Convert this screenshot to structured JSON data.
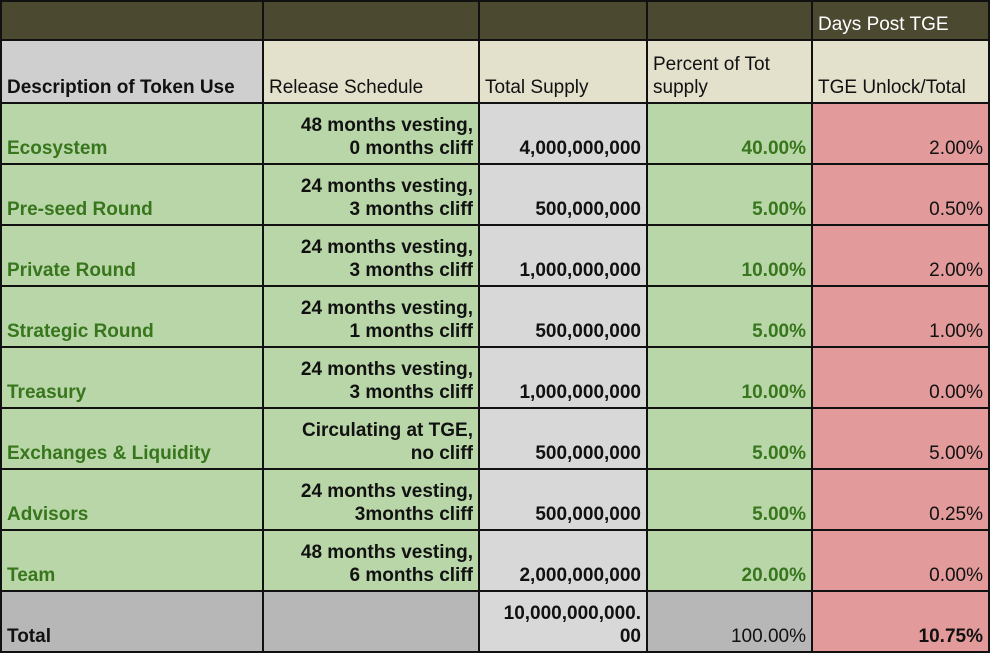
{
  "top_header": {
    "days_post_tge": "Days Post TGE"
  },
  "headers": {
    "description": "Description of Token Use",
    "release_schedule": "Release Schedule",
    "total_supply": "Total Supply",
    "percent_of_tot": "Percent of Tot supply",
    "tge_unlock": "TGE Unlock/Total"
  },
  "rows": [
    {
      "name": "Ecosystem",
      "schedule_line1": "48 months vesting,",
      "schedule_line2": "0 months cliff",
      "supply": "4,000,000,000",
      "percent": "40.00%",
      "unlock": "2.00%"
    },
    {
      "name": "Pre-seed Round",
      "schedule_line1": "24 months vesting,",
      "schedule_line2": "3 months cliff",
      "supply": "500,000,000",
      "percent": "5.00%",
      "unlock": "0.50%"
    },
    {
      "name": "Private Round",
      "schedule_line1": "24 months vesting,",
      "schedule_line2": "3 months cliff",
      "supply": "1,000,000,000",
      "percent": "10.00%",
      "unlock": "2.00%"
    },
    {
      "name": "Strategic Round",
      "schedule_line1": "24 months vesting,",
      "schedule_line2": "1 months cliff",
      "supply": "500,000,000",
      "percent": "5.00%",
      "unlock": "1.00%"
    },
    {
      "name": "Treasury",
      "schedule_line1": "24 months vesting,",
      "schedule_line2": "3 months cliff",
      "supply": "1,000,000,000",
      "percent": "10.00%",
      "unlock": "0.00%"
    },
    {
      "name": "Exchanges & Liquidity",
      "schedule_line1": "Circulating at TGE,",
      "schedule_line2": "no cliff",
      "supply": "500,000,000",
      "percent": "5.00%",
      "unlock": "5.00%"
    },
    {
      "name": "Advisors",
      "schedule_line1": "24 months vesting,",
      "schedule_line2": "3months cliff",
      "supply": "500,000,000",
      "percent": "5.00%",
      "unlock": "0.25%"
    },
    {
      "name": "Team",
      "schedule_line1": "48 months vesting,",
      "schedule_line2": "6 months cliff",
      "supply": "2,000,000,000",
      "percent": "20.00%",
      "unlock": "0.00%"
    }
  ],
  "total": {
    "label": "Total",
    "schedule": "",
    "supply_line1": "10,000,000,000.",
    "supply_line2": "00",
    "percent": "100.00%",
    "unlock": "10.75%"
  },
  "colors": {
    "header_olive": "#4c4931",
    "header_beige": "#e3e0cc",
    "header_grey": "#cfcfcf",
    "green_cell": "#b9d6a8",
    "light_cell": "#d8d8d8",
    "red_cell": "#e29a9a",
    "total_row": "#b7b7b7",
    "green_text": "#38761d"
  }
}
